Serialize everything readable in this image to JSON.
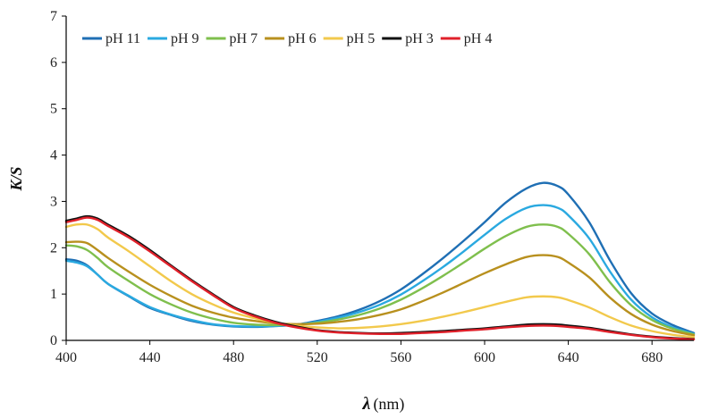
{
  "chart_data": {
    "type": "line",
    "title": "",
    "xlabel": "λ",
    "xlabel_unit": "(nm)",
    "ylabel": "K/S",
    "xlim": [
      400,
      700
    ],
    "ylim": [
      0,
      7
    ],
    "xticks": [
      400,
      440,
      480,
      520,
      560,
      600,
      640,
      680
    ],
    "yticks": [
      0,
      1,
      2,
      3,
      4,
      5,
      6,
      7
    ],
    "grid": false,
    "legend": "top-left",
    "series": [
      {
        "name": "pH 11",
        "color": "#1f6fb4",
        "points": [
          [
            400,
            1.75
          ],
          [
            405,
            1.72
          ],
          [
            410,
            1.62
          ],
          [
            415,
            1.42
          ],
          [
            420,
            1.22
          ],
          [
            430,
            0.95
          ],
          [
            440,
            0.7
          ],
          [
            450,
            0.55
          ],
          [
            460,
            0.42
          ],
          [
            470,
            0.34
          ],
          [
            480,
            0.3
          ],
          [
            490,
            0.29
          ],
          [
            500,
            0.31
          ],
          [
            510,
            0.34
          ],
          [
            520,
            0.42
          ],
          [
            530,
            0.52
          ],
          [
            540,
            0.66
          ],
          [
            550,
            0.85
          ],
          [
            560,
            1.1
          ],
          [
            570,
            1.42
          ],
          [
            580,
            1.77
          ],
          [
            590,
            2.15
          ],
          [
            600,
            2.55
          ],
          [
            610,
            2.97
          ],
          [
            620,
            3.28
          ],
          [
            628,
            3.4
          ],
          [
            635,
            3.33
          ],
          [
            640,
            3.15
          ],
          [
            650,
            2.55
          ],
          [
            660,
            1.72
          ],
          [
            670,
            1.02
          ],
          [
            680,
            0.58
          ],
          [
            690,
            0.33
          ],
          [
            700,
            0.16
          ]
        ]
      },
      {
        "name": "pH 9",
        "color": "#2aa9e0",
        "points": [
          [
            400,
            1.72
          ],
          [
            405,
            1.68
          ],
          [
            410,
            1.6
          ],
          [
            415,
            1.42
          ],
          [
            420,
            1.22
          ],
          [
            430,
            0.96
          ],
          [
            440,
            0.72
          ],
          [
            450,
            0.56
          ],
          [
            460,
            0.44
          ],
          [
            470,
            0.35
          ],
          [
            480,
            0.31
          ],
          [
            490,
            0.3
          ],
          [
            500,
            0.31
          ],
          [
            510,
            0.34
          ],
          [
            520,
            0.4
          ],
          [
            530,
            0.49
          ],
          [
            540,
            0.61
          ],
          [
            550,
            0.77
          ],
          [
            560,
            0.99
          ],
          [
            570,
            1.27
          ],
          [
            580,
            1.58
          ],
          [
            590,
            1.92
          ],
          [
            600,
            2.28
          ],
          [
            610,
            2.62
          ],
          [
            620,
            2.86
          ],
          [
            628,
            2.92
          ],
          [
            635,
            2.86
          ],
          [
            640,
            2.7
          ],
          [
            650,
            2.2
          ],
          [
            660,
            1.48
          ],
          [
            670,
            0.88
          ],
          [
            680,
            0.5
          ],
          [
            690,
            0.28
          ],
          [
            700,
            0.14
          ]
        ]
      },
      {
        "name": "pH 7",
        "color": "#7fbf4d",
        "points": [
          [
            400,
            2.05
          ],
          [
            405,
            2.03
          ],
          [
            410,
            1.95
          ],
          [
            415,
            1.78
          ],
          [
            420,
            1.58
          ],
          [
            430,
            1.28
          ],
          [
            440,
            1.0
          ],
          [
            450,
            0.78
          ],
          [
            460,
            0.6
          ],
          [
            470,
            0.47
          ],
          [
            480,
            0.38
          ],
          [
            490,
            0.34
          ],
          [
            500,
            0.33
          ],
          [
            510,
            0.34
          ],
          [
            520,
            0.38
          ],
          [
            530,
            0.45
          ],
          [
            540,
            0.55
          ],
          [
            550,
            0.69
          ],
          [
            560,
            0.88
          ],
          [
            570,
            1.12
          ],
          [
            580,
            1.39
          ],
          [
            590,
            1.68
          ],
          [
            600,
            1.98
          ],
          [
            610,
            2.25
          ],
          [
            620,
            2.45
          ],
          [
            628,
            2.5
          ],
          [
            635,
            2.45
          ],
          [
            640,
            2.3
          ],
          [
            650,
            1.86
          ],
          [
            660,
            1.25
          ],
          [
            670,
            0.76
          ],
          [
            680,
            0.44
          ],
          [
            690,
            0.25
          ],
          [
            700,
            0.13
          ]
        ]
      },
      {
        "name": "pH 6",
        "color": "#b8901e",
        "points": [
          [
            400,
            2.12
          ],
          [
            405,
            2.13
          ],
          [
            410,
            2.1
          ],
          [
            415,
            1.95
          ],
          [
            420,
            1.78
          ],
          [
            430,
            1.48
          ],
          [
            440,
            1.2
          ],
          [
            450,
            0.96
          ],
          [
            460,
            0.75
          ],
          [
            470,
            0.6
          ],
          [
            480,
            0.49
          ],
          [
            490,
            0.42
          ],
          [
            500,
            0.37
          ],
          [
            510,
            0.35
          ],
          [
            520,
            0.36
          ],
          [
            530,
            0.4
          ],
          [
            540,
            0.46
          ],
          [
            550,
            0.55
          ],
          [
            560,
            0.67
          ],
          [
            570,
            0.84
          ],
          [
            580,
            1.03
          ],
          [
            590,
            1.24
          ],
          [
            600,
            1.45
          ],
          [
            610,
            1.64
          ],
          [
            620,
            1.8
          ],
          [
            628,
            1.84
          ],
          [
            635,
            1.8
          ],
          [
            640,
            1.68
          ],
          [
            650,
            1.36
          ],
          [
            660,
            0.92
          ],
          [
            670,
            0.57
          ],
          [
            680,
            0.34
          ],
          [
            690,
            0.2
          ],
          [
            700,
            0.11
          ]
        ]
      },
      {
        "name": "pH 5",
        "color": "#f2c94c",
        "points": [
          [
            400,
            2.45
          ],
          [
            405,
            2.5
          ],
          [
            410,
            2.5
          ],
          [
            415,
            2.4
          ],
          [
            420,
            2.22
          ],
          [
            430,
            1.92
          ],
          [
            440,
            1.6
          ],
          [
            450,
            1.28
          ],
          [
            460,
            1.0
          ],
          [
            470,
            0.78
          ],
          [
            480,
            0.6
          ],
          [
            490,
            0.48
          ],
          [
            500,
            0.38
          ],
          [
            510,
            0.32
          ],
          [
            520,
            0.28
          ],
          [
            530,
            0.26
          ],
          [
            540,
            0.27
          ],
          [
            550,
            0.3
          ],
          [
            560,
            0.35
          ],
          [
            570,
            0.42
          ],
          [
            580,
            0.51
          ],
          [
            590,
            0.61
          ],
          [
            600,
            0.72
          ],
          [
            610,
            0.83
          ],
          [
            620,
            0.93
          ],
          [
            628,
            0.95
          ],
          [
            635,
            0.93
          ],
          [
            640,
            0.87
          ],
          [
            650,
            0.71
          ],
          [
            660,
            0.5
          ],
          [
            670,
            0.32
          ],
          [
            680,
            0.2
          ],
          [
            690,
            0.12
          ],
          [
            700,
            0.07
          ]
        ]
      },
      {
        "name": "pH 3",
        "color": "#111111",
        "points": [
          [
            400,
            2.58
          ],
          [
            405,
            2.63
          ],
          [
            410,
            2.68
          ],
          [
            415,
            2.63
          ],
          [
            420,
            2.5
          ],
          [
            430,
            2.25
          ],
          [
            440,
            1.95
          ],
          [
            450,
            1.62
          ],
          [
            460,
            1.3
          ],
          [
            470,
            1.0
          ],
          [
            480,
            0.72
          ],
          [
            490,
            0.54
          ],
          [
            500,
            0.4
          ],
          [
            510,
            0.3
          ],
          [
            520,
            0.22
          ],
          [
            530,
            0.18
          ],
          [
            540,
            0.16
          ],
          [
            550,
            0.15
          ],
          [
            560,
            0.16
          ],
          [
            570,
            0.18
          ],
          [
            580,
            0.2
          ],
          [
            590,
            0.23
          ],
          [
            600,
            0.26
          ],
          [
            610,
            0.3
          ],
          [
            620,
            0.34
          ],
          [
            628,
            0.35
          ],
          [
            635,
            0.34
          ],
          [
            640,
            0.32
          ],
          [
            650,
            0.27
          ],
          [
            660,
            0.2
          ],
          [
            670,
            0.13
          ],
          [
            680,
            0.08
          ],
          [
            690,
            0.05
          ],
          [
            700,
            0.03
          ]
        ]
      },
      {
        "name": "pH 4",
        "color": "#e0202a",
        "points": [
          [
            400,
            2.55
          ],
          [
            405,
            2.6
          ],
          [
            410,
            2.65
          ],
          [
            415,
            2.6
          ],
          [
            420,
            2.47
          ],
          [
            430,
            2.22
          ],
          [
            440,
            1.92
          ],
          [
            450,
            1.6
          ],
          [
            460,
            1.28
          ],
          [
            470,
            0.98
          ],
          [
            480,
            0.7
          ],
          [
            490,
            0.52
          ],
          [
            500,
            0.38
          ],
          [
            510,
            0.28
          ],
          [
            520,
            0.21
          ],
          [
            530,
            0.17
          ],
          [
            540,
            0.15
          ],
          [
            550,
            0.14
          ],
          [
            560,
            0.14
          ],
          [
            570,
            0.16
          ],
          [
            580,
            0.18
          ],
          [
            590,
            0.21
          ],
          [
            600,
            0.24
          ],
          [
            610,
            0.28
          ],
          [
            620,
            0.31
          ],
          [
            628,
            0.32
          ],
          [
            635,
            0.31
          ],
          [
            640,
            0.29
          ],
          [
            650,
            0.25
          ],
          [
            660,
            0.18
          ],
          [
            670,
            0.12
          ],
          [
            680,
            0.07
          ],
          [
            690,
            0.04
          ],
          [
            700,
            0.02
          ]
        ]
      }
    ]
  }
}
